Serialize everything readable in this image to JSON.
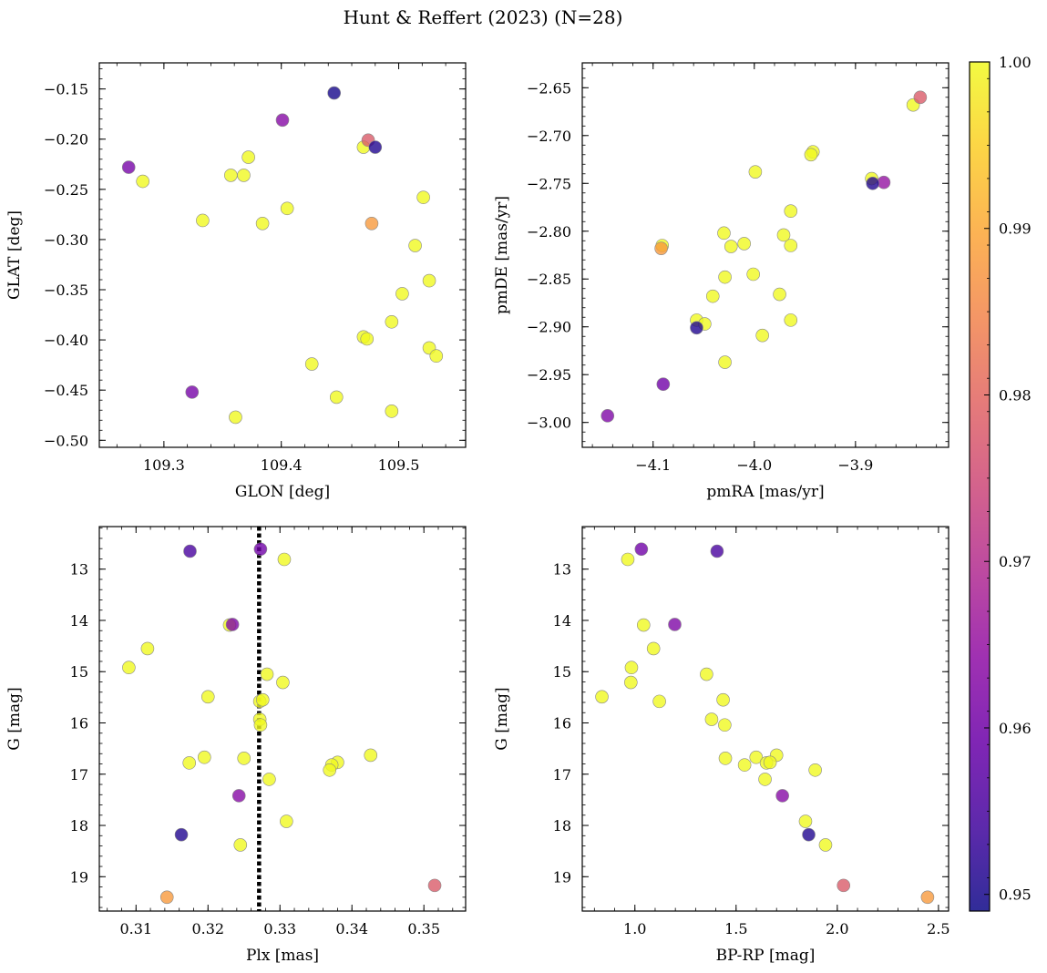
{
  "title": "Hunt & Reffert (2023) (N=28)",
  "colors": {
    "point_edge": "#888888",
    "vline": "#000000"
  },
  "colorbar": {
    "colormap": "plasma",
    "vmin": 0.949,
    "vmax": 1.0,
    "ticks": [
      "0.95",
      "0.96",
      "0.97",
      "0.98",
      "0.99",
      "1.00"
    ],
    "tick_values": [
      0.95,
      0.96,
      0.97,
      0.98,
      0.99,
      1.0
    ]
  },
  "chart_data": [
    {
      "type": "scatter",
      "id": "glon-glat",
      "xlabel": "GLON [deg]",
      "ylabel": "GLAT [deg]",
      "xlim": [
        109.245,
        109.557
      ],
      "ylim": [
        -0.507,
        -0.124
      ],
      "y_inverted": false,
      "xticks": [
        109.3,
        109.4,
        109.5
      ],
      "xticklabels": [
        "109.3",
        "109.4",
        "109.5"
      ],
      "yticks": [
        -0.15,
        -0.2,
        -0.25,
        -0.3,
        -0.35,
        -0.4,
        -0.45,
        -0.5
      ],
      "yticklabels": [
        "−0.15",
        "−0.20",
        "−0.25",
        "−0.30",
        "−0.35",
        "−0.40",
        "−0.45",
        "−0.50"
      ],
      "points": [
        {
          "x": 109.445,
          "y": -0.154,
          "c": 0.95
        },
        {
          "x": 109.401,
          "y": -0.181,
          "c": 0.963
        },
        {
          "x": 109.474,
          "y": -0.201,
          "c": 0.978
        },
        {
          "x": 109.47,
          "y": -0.208,
          "c": 1.0
        },
        {
          "x": 109.48,
          "y": -0.208,
          "c": 0.951
        },
        {
          "x": 109.372,
          "y": -0.218,
          "c": 1.0
        },
        {
          "x": 109.27,
          "y": -0.228,
          "c": 0.961
        },
        {
          "x": 109.357,
          "y": -0.236,
          "c": 1.0
        },
        {
          "x": 109.368,
          "y": -0.236,
          "c": 1.0
        },
        {
          "x": 109.282,
          "y": -0.242,
          "c": 1.0
        },
        {
          "x": 109.521,
          "y": -0.258,
          "c": 1.0
        },
        {
          "x": 109.405,
          "y": -0.269,
          "c": 1.0
        },
        {
          "x": 109.333,
          "y": -0.281,
          "c": 1.0
        },
        {
          "x": 109.384,
          "y": -0.284,
          "c": 1.0
        },
        {
          "x": 109.477,
          "y": -0.284,
          "c": 0.988
        },
        {
          "x": 109.514,
          "y": -0.306,
          "c": 1.0
        },
        {
          "x": 109.526,
          "y": -0.341,
          "c": 1.0
        },
        {
          "x": 109.503,
          "y": -0.354,
          "c": 1.0
        },
        {
          "x": 109.494,
          "y": -0.382,
          "c": 1.0
        },
        {
          "x": 109.47,
          "y": -0.397,
          "c": 1.0
        },
        {
          "x": 109.473,
          "y": -0.399,
          "c": 1.0
        },
        {
          "x": 109.526,
          "y": -0.408,
          "c": 1.0
        },
        {
          "x": 109.532,
          "y": -0.416,
          "c": 1.0
        },
        {
          "x": 109.426,
          "y": -0.424,
          "c": 1.0
        },
        {
          "x": 109.324,
          "y": -0.452,
          "c": 0.961
        },
        {
          "x": 109.447,
          "y": -0.457,
          "c": 1.0
        },
        {
          "x": 109.494,
          "y": -0.471,
          "c": 1.0
        },
        {
          "x": 109.361,
          "y": -0.477,
          "c": 1.0
        }
      ]
    },
    {
      "type": "scatter",
      "id": "pmra-pmde",
      "xlabel": "pmRA [mas/yr]",
      "ylabel": "pmDE [mas/yr]",
      "xlim": [
        -4.17,
        -3.808
      ],
      "ylim": [
        -3.026,
        -2.624
      ],
      "y_inverted": false,
      "xticks": [
        -4.1,
        -4.0,
        -3.9
      ],
      "xticklabels": [
        "−4.1",
        "−4.0",
        "−3.9"
      ],
      "yticks": [
        -2.65,
        -2.7,
        -2.75,
        -2.8,
        -2.85,
        -2.9,
        -2.95,
        -3.0
      ],
      "yticklabels": [
        "−2.65",
        "−2.70",
        "−2.75",
        "−2.80",
        "−2.85",
        "−2.90",
        "−2.95",
        "−3.00"
      ],
      "points": [
        {
          "x": -3.836,
          "y": -2.66,
          "c": 0.978
        },
        {
          "x": -3.843,
          "y": -2.668,
          "c": 1.0
        },
        {
          "x": -3.942,
          "y": -2.717,
          "c": 1.0
        },
        {
          "x": -3.944,
          "y": -2.72,
          "c": 1.0
        },
        {
          "x": -3.999,
          "y": -2.738,
          "c": 1.0
        },
        {
          "x": -3.884,
          "y": -2.745,
          "c": 1.0
        },
        {
          "x": -3.883,
          "y": -2.75,
          "c": 0.951
        },
        {
          "x": -3.872,
          "y": -2.749,
          "c": 0.965
        },
        {
          "x": -3.964,
          "y": -2.779,
          "c": 1.0
        },
        {
          "x": -4.03,
          "y": -2.802,
          "c": 1.0
        },
        {
          "x": -3.971,
          "y": -2.804,
          "c": 1.0
        },
        {
          "x": -4.01,
          "y": -2.813,
          "c": 1.0
        },
        {
          "x": -4.023,
          "y": -2.816,
          "c": 1.0
        },
        {
          "x": -3.964,
          "y": -2.815,
          "c": 1.0
        },
        {
          "x": -4.092,
          "y": -2.818,
          "c": 0.988
        },
        {
          "x": -4.091,
          "y": -2.815,
          "c": 1.0
        },
        {
          "x": -4.029,
          "y": -2.848,
          "c": 1.0
        },
        {
          "x": -4.001,
          "y": -2.845,
          "c": 1.0
        },
        {
          "x": -4.041,
          "y": -2.868,
          "c": 1.0
        },
        {
          "x": -3.975,
          "y": -2.866,
          "c": 1.0
        },
        {
          "x": -4.057,
          "y": -2.901,
          "c": 0.951
        },
        {
          "x": -4.057,
          "y": -2.893,
          "c": 1.0
        },
        {
          "x": -4.049,
          "y": -2.897,
          "c": 1.0
        },
        {
          "x": -3.964,
          "y": -2.893,
          "c": 1.0
        },
        {
          "x": -3.992,
          "y": -2.909,
          "c": 1.0
        },
        {
          "x": -4.029,
          "y": -2.937,
          "c": 1.0
        },
        {
          "x": -4.09,
          "y": -2.96,
          "c": 0.96
        },
        {
          "x": -4.145,
          "y": -2.993,
          "c": 0.962
        }
      ]
    },
    {
      "type": "scatter",
      "id": "plx-g",
      "xlabel": "Plx [mas]",
      "ylabel": "G [mag]",
      "xlim": [
        0.3049,
        0.3558
      ],
      "ylim": [
        19.67,
        12.17
      ],
      "y_inverted": true,
      "vline": 0.3271,
      "xticks": [
        0.31,
        0.32,
        0.33,
        0.34,
        0.35
      ],
      "xticklabels": [
        "0.31",
        "0.32",
        "0.33",
        "0.34",
        "0.35"
      ],
      "yticks": [
        13,
        14,
        15,
        16,
        17,
        18,
        19
      ],
      "yticklabels": [
        "13",
        "14",
        "15",
        "16",
        "17",
        "18",
        "19"
      ],
      "points": [
        {
          "x": 0.3175,
          "y": 12.65,
          "c": 0.955
        },
        {
          "x": 0.3273,
          "y": 12.61,
          "c": 0.96
        },
        {
          "x": 0.3306,
          "y": 12.81,
          "c": 1.0
        },
        {
          "x": 0.323,
          "y": 14.09,
          "c": 1.0
        },
        {
          "x": 0.3234,
          "y": 14.08,
          "c": 0.962
        },
        {
          "x": 0.3116,
          "y": 14.55,
          "c": 1.0
        },
        {
          "x": 0.309,
          "y": 14.92,
          "c": 1.0
        },
        {
          "x": 0.3282,
          "y": 15.05,
          "c": 1.0
        },
        {
          "x": 0.3304,
          "y": 15.21,
          "c": 1.0
        },
        {
          "x": 0.32,
          "y": 15.49,
          "c": 1.0
        },
        {
          "x": 0.3272,
          "y": 15.58,
          "c": 1.0
        },
        {
          "x": 0.3276,
          "y": 15.55,
          "c": 1.0
        },
        {
          "x": 0.3272,
          "y": 15.93,
          "c": 1.0
        },
        {
          "x": 0.3273,
          "y": 16.04,
          "c": 1.0
        },
        {
          "x": 0.3426,
          "y": 16.63,
          "c": 1.0
        },
        {
          "x": 0.3195,
          "y": 16.67,
          "c": 1.0
        },
        {
          "x": 0.325,
          "y": 16.69,
          "c": 1.0
        },
        {
          "x": 0.3174,
          "y": 16.78,
          "c": 1.0
        },
        {
          "x": 0.338,
          "y": 16.77,
          "c": 1.0
        },
        {
          "x": 0.3372,
          "y": 16.82,
          "c": 1.0
        },
        {
          "x": 0.3369,
          "y": 16.92,
          "c": 1.0
        },
        {
          "x": 0.3285,
          "y": 17.1,
          "c": 1.0
        },
        {
          "x": 0.3243,
          "y": 17.42,
          "c": 0.963
        },
        {
          "x": 0.3309,
          "y": 17.92,
          "c": 1.0
        },
        {
          "x": 0.3163,
          "y": 18.18,
          "c": 0.951
        },
        {
          "x": 0.3245,
          "y": 18.38,
          "c": 1.0
        },
        {
          "x": 0.3515,
          "y": 19.17,
          "c": 0.978
        },
        {
          "x": 0.3143,
          "y": 19.4,
          "c": 0.988
        }
      ]
    },
    {
      "type": "scatter",
      "id": "bprp-g",
      "xlabel": "BP-RP [mag]",
      "ylabel": "G [mag]",
      "xlim": [
        0.74,
        2.55
      ],
      "ylim": [
        19.67,
        12.17
      ],
      "y_inverted": true,
      "xticks": [
        1.0,
        1.5,
        2.0,
        2.5
      ],
      "xticklabels": [
        "1.0",
        "1.5",
        "2.0",
        "2.5"
      ],
      "yticks": [
        13,
        14,
        15,
        16,
        17,
        18,
        19
      ],
      "yticklabels": [
        "13",
        "14",
        "15",
        "16",
        "17",
        "18",
        "19"
      ],
      "points": [
        {
          "x": 1.406,
          "y": 12.65,
          "c": 0.955
        },
        {
          "x": 1.032,
          "y": 12.61,
          "c": 0.96
        },
        {
          "x": 0.965,
          "y": 12.81,
          "c": 1.0
        },
        {
          "x": 1.043,
          "y": 14.09,
          "c": 1.0
        },
        {
          "x": 1.197,
          "y": 14.08,
          "c": 0.962
        },
        {
          "x": 1.092,
          "y": 14.55,
          "c": 1.0
        },
        {
          "x": 0.983,
          "y": 14.92,
          "c": 1.0
        },
        {
          "x": 1.354,
          "y": 15.05,
          "c": 1.0
        },
        {
          "x": 0.98,
          "y": 15.21,
          "c": 1.0
        },
        {
          "x": 0.837,
          "y": 15.49,
          "c": 1.0
        },
        {
          "x": 1.121,
          "y": 15.58,
          "c": 1.0
        },
        {
          "x": 1.436,
          "y": 15.55,
          "c": 1.0
        },
        {
          "x": 1.379,
          "y": 15.93,
          "c": 1.0
        },
        {
          "x": 1.444,
          "y": 16.04,
          "c": 1.0
        },
        {
          "x": 1.7,
          "y": 16.63,
          "c": 1.0
        },
        {
          "x": 1.599,
          "y": 16.67,
          "c": 1.0
        },
        {
          "x": 1.447,
          "y": 16.69,
          "c": 1.0
        },
        {
          "x": 1.65,
          "y": 16.78,
          "c": 1.0
        },
        {
          "x": 1.668,
          "y": 16.77,
          "c": 1.0
        },
        {
          "x": 1.542,
          "y": 16.82,
          "c": 1.0
        },
        {
          "x": 1.891,
          "y": 16.92,
          "c": 1.0
        },
        {
          "x": 1.643,
          "y": 17.1,
          "c": 1.0
        },
        {
          "x": 1.729,
          "y": 17.42,
          "c": 0.963
        },
        {
          "x": 1.843,
          "y": 17.92,
          "c": 1.0
        },
        {
          "x": 1.859,
          "y": 18.18,
          "c": 0.951
        },
        {
          "x": 1.942,
          "y": 18.38,
          "c": 1.0
        },
        {
          "x": 2.031,
          "y": 19.17,
          "c": 0.978
        },
        {
          "x": 2.446,
          "y": 19.4,
          "c": 0.988
        }
      ]
    }
  ]
}
